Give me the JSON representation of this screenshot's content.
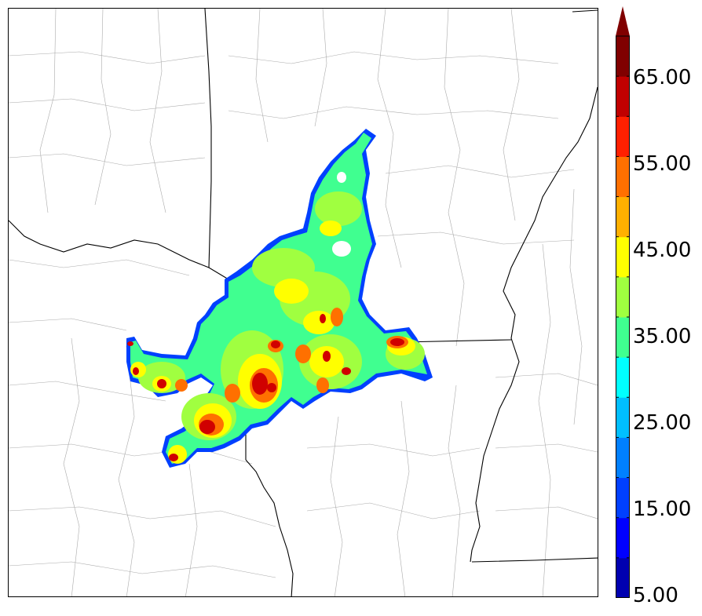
{
  "colorbar": {
    "colors": [
      "#0000b0",
      "#0000ff",
      "#0040ff",
      "#0080ff",
      "#00bfff",
      "#00ffff",
      "#40ff90",
      "#a0ff40",
      "#ffff00",
      "#ffb000",
      "#ff7000",
      "#ff2000",
      "#c00000",
      "#800000"
    ],
    "extend_color": "#800000",
    "labels": [
      "65.00",
      "55.00",
      "45.00",
      "35.00",
      "25.00",
      "15.00",
      "5.00"
    ],
    "min": 5,
    "max": 70,
    "step": 5
  },
  "map": {
    "background": "#ffffff",
    "boundary_color": "#000000",
    "county_color": "#999999"
  }
}
